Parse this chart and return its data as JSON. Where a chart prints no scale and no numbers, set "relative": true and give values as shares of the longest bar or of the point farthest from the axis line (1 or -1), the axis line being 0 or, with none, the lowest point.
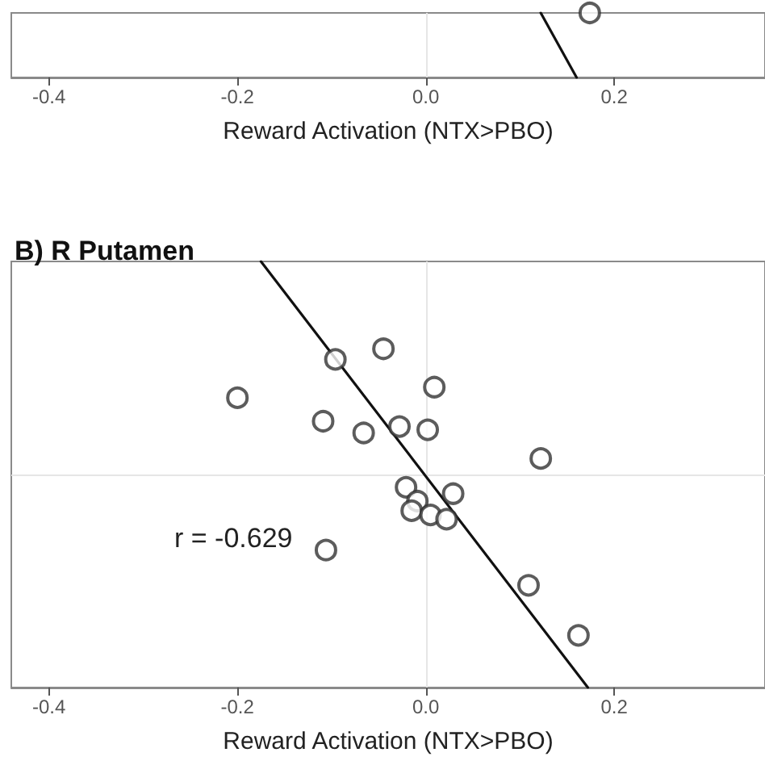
{
  "chart_data": [
    {
      "type": "scatter",
      "relative": true,
      "tick_labels": "x",
      "xlabel": "Reward Activation (NTX>PBO)",
      "xlim": [
        -0.44,
        0.36
      ],
      "xticks": [
        -0.4,
        -0.2,
        {
          "value": 0,
          "label": "0.0"
        },
        0.2
      ],
      "grid": false,
      "ref_lines": [
        {
          "axis": "x",
          "value": 0,
          "label": null,
          "color": "#e6e6e6"
        }
      ],
      "series": [
        {
          "color": "#333333",
          "marker": "circle",
          "x": [
            0.174
          ],
          "values": [
            1
          ]
        },
        {
          "type": "line",
          "color": "#111111",
          "marker": "none",
          "x": [
            0.122,
            0.16
          ],
          "values": [
            1,
            0
          ]
        }
      ]
    },
    {
      "type": "scatter",
      "relative": true,
      "tick_labels": "x",
      "title": "B) R Putamen",
      "xlabel": "Reward Activation (NTX>PBO)",
      "xlim": [
        -0.44,
        0.36
      ],
      "xticks": [
        -0.4,
        -0.2,
        {
          "value": 0,
          "label": "0.0"
        },
        0.2
      ],
      "grid": false,
      "annotations": [
        "r = -0.629"
      ],
      "ref_lines": [
        {
          "axis": "x",
          "value": 0,
          "label": null,
          "color": "#e6e6e6"
        },
        {
          "axis": "y",
          "value": 0,
          "label": null,
          "color": "#e6e6e6"
        }
      ],
      "series": [
        {
          "color": "#333333",
          "marker": "circle",
          "x": [
            -0.2,
            -0.096,
            -0.045,
            0.009,
            -0.109,
            -0.066,
            -0.028,
            0.002,
            0.122,
            -0.021,
            -0.009,
            -0.015,
            0.005,
            0.029,
            0.022,
            -0.106,
            0.109,
            0.162
          ],
          "values": [
            0.36,
            0.54,
            0.59,
            0.41,
            0.25,
            0.195,
            0.225,
            0.21,
            0.075,
            -0.06,
            -0.125,
            -0.17,
            -0.19,
            -0.09,
            -0.21,
            -0.355,
            -0.52,
            -0.755
          ]
        },
        {
          "type": "line",
          "color": "#111111",
          "marker": "none",
          "x": [
            -0.175,
            0.172
          ],
          "values": [
            1,
            -1
          ]
        }
      ]
    }
  ]
}
